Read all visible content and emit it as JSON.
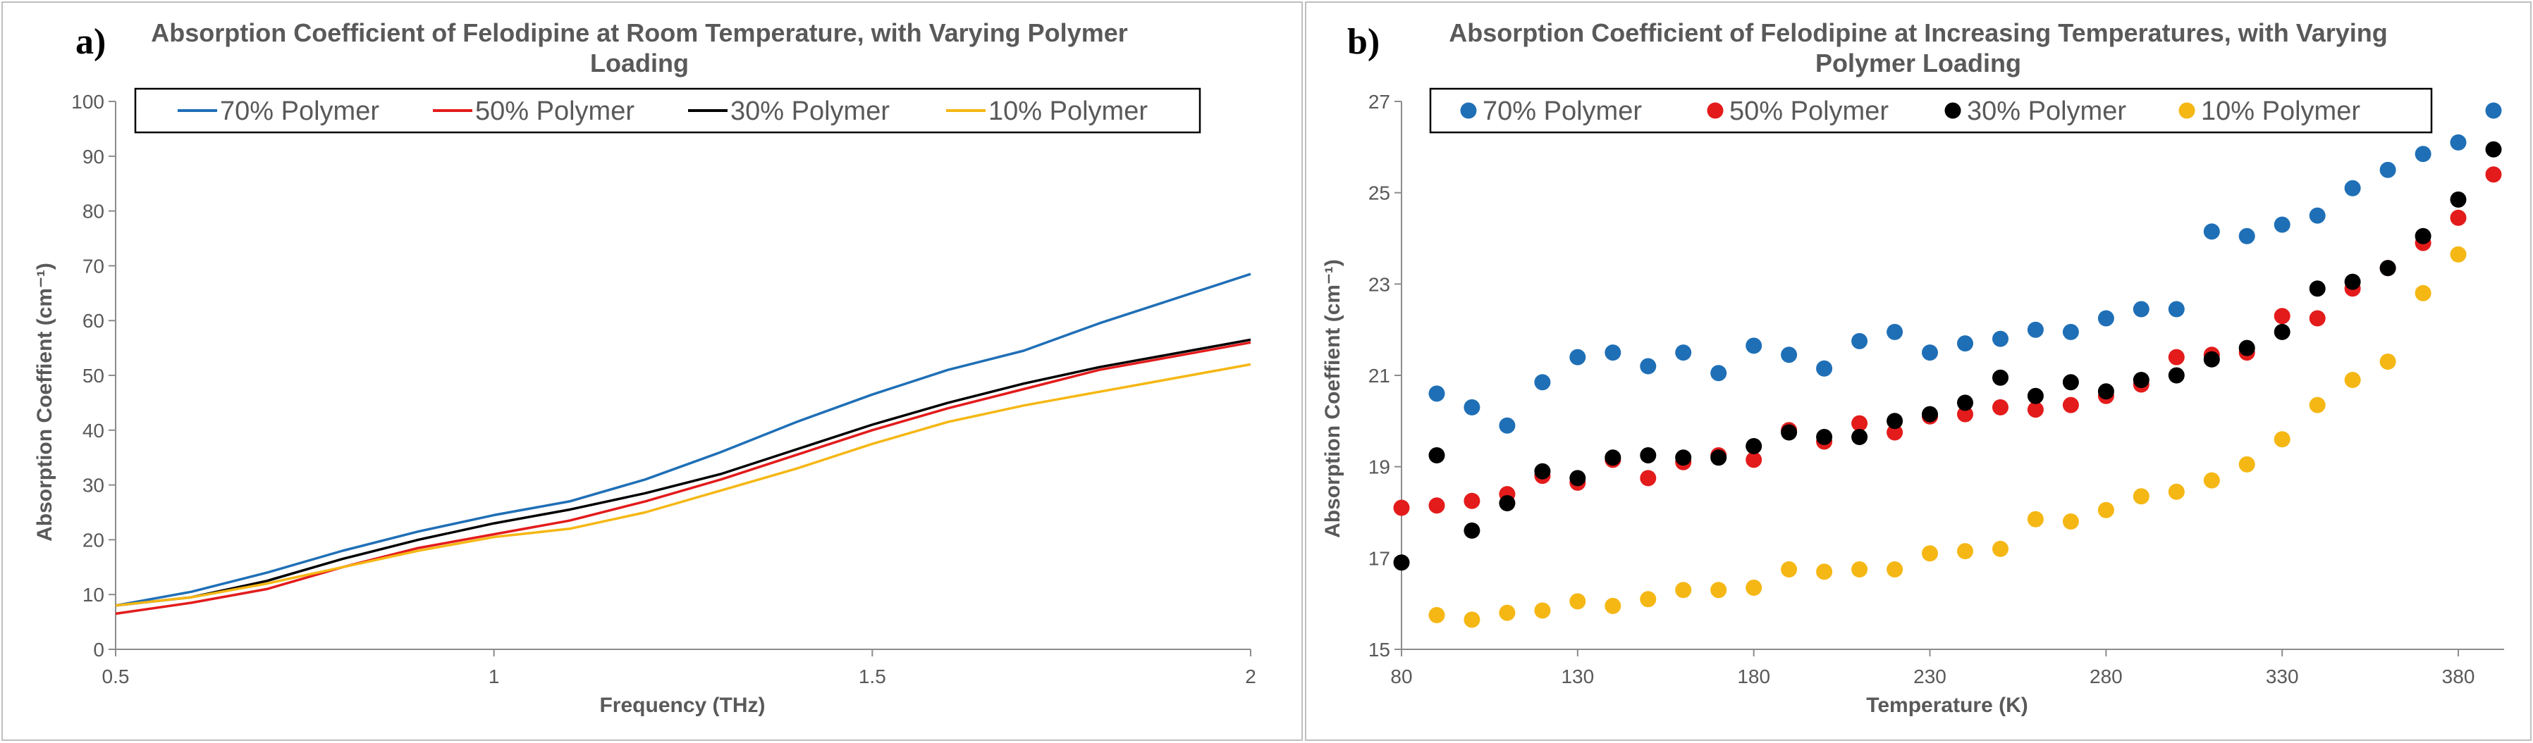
{
  "charts": [
    {
      "panel_letter": "a)",
      "title_lines": [
        "Absorption Coefficient of Felodipine at Room Temperature, with Varying Polymer",
        "Loading"
      ],
      "xlabel": "Frequency (THz)",
      "ylabel": "Absorption Coeffient (cm⁻¹)",
      "xticks": [
        "0.5",
        "1",
        "1.5",
        "2"
      ],
      "yticks": [
        "0",
        "10",
        "20",
        "30",
        "40",
        "50",
        "60",
        "70",
        "80",
        "90",
        "100"
      ]
    },
    {
      "panel_letter": "b)",
      "title_lines": [
        "Absorption Coefficient of Felodipine at Increasing Temperatures, with Varying",
        "Polymer Loading"
      ],
      "xlabel": "Temperature (K)",
      "ylabel": "Absorption Coeffient (cm⁻¹)",
      "xticks": [
        "80",
        "130",
        "180",
        "230",
        "280",
        "330",
        "380"
      ],
      "yticks": [
        "15",
        "17",
        "19",
        "21",
        "23",
        "25",
        "27"
      ]
    }
  ],
  "chart_data": [
    {
      "type": "line",
      "title": "Absorption Coefficient of Felodipine at Room Temperature, with Varying Polymer Loading",
      "xlabel": "Frequency (THz)",
      "ylabel": "Absorption Coeffient (cm⁻¹)",
      "xlim": [
        0.5,
        2
      ],
      "ylim": [
        0,
        100
      ],
      "x_ticks": [
        0.5,
        1,
        1.5,
        2
      ],
      "y_ticks": [
        0,
        10,
        20,
        30,
        40,
        50,
        60,
        70,
        80,
        90,
        100
      ],
      "grid": false,
      "legend_position": "top",
      "x": [
        0.5,
        0.6,
        0.7,
        0.8,
        0.9,
        1.0,
        1.1,
        1.2,
        1.3,
        1.4,
        1.5,
        1.6,
        1.7,
        1.8,
        1.9,
        2.0
      ],
      "series": [
        {
          "name": "70% Polymer",
          "color": "#1f6fb6",
          "values": [
            8,
            10.5,
            14,
            18,
            21.5,
            24.5,
            27,
            31,
            36,
            41.5,
            46.5,
            51,
            54.5,
            59.5,
            64,
            68.5
          ]
        },
        {
          "name": "50% Polymer",
          "color": "#e31b1b",
          "values": [
            6.5,
            8.5,
            11,
            15,
            18.5,
            21,
            23.5,
            27,
            31,
            35.5,
            40,
            44,
            47.5,
            51,
            53.5,
            56
          ]
        },
        {
          "name": "30% Polymer",
          "color": "#000000",
          "values": [
            8,
            9.5,
            12.5,
            16.5,
            20,
            23,
            25.5,
            28.5,
            32,
            36.5,
            41,
            45,
            48.5,
            51.5,
            54,
            56.5
          ]
        },
        {
          "name": "10% Polymer",
          "color": "#f5b714",
          "values": [
            8,
            9.5,
            12,
            15,
            18,
            20.5,
            22,
            25,
            29,
            33,
            37.5,
            41.5,
            44.5,
            47,
            49.5,
            52
          ]
        }
      ]
    },
    {
      "type": "scatter",
      "title": "Absorption Coefficient of Felodipine at Increasing Temperatures, with Varying Polymer Loading",
      "xlabel": "Temperature (K)",
      "ylabel": "Absorption Coeffient (cm⁻¹)",
      "xlim": [
        80,
        393
      ],
      "ylim": [
        15,
        27
      ],
      "x_ticks": [
        80,
        130,
        180,
        230,
        280,
        330,
        380
      ],
      "y_ticks": [
        15,
        17,
        19,
        21,
        23,
        25,
        27
      ],
      "grid": false,
      "legend_position": "top",
      "x": [
        80,
        90,
        100,
        110,
        120,
        130,
        140,
        150,
        160,
        170,
        180,
        190,
        200,
        210,
        220,
        230,
        240,
        250,
        260,
        270,
        280,
        290,
        300,
        310,
        320,
        330,
        340,
        350,
        360,
        370,
        380,
        390
      ],
      "series": [
        {
          "name": "70% Polymer",
          "color": "#1f6fb6",
          "values": [
            null,
            20.6,
            20.3,
            19.9,
            20.85,
            21.4,
            21.5,
            21.2,
            21.5,
            21.05,
            21.65,
            21.45,
            21.15,
            21.75,
            21.95,
            21.5,
            21.7,
            21.8,
            22.0,
            21.95,
            22.25,
            22.45,
            22.45,
            24.15,
            24.05,
            24.3,
            24.5,
            25.1,
            25.5,
            25.85,
            26.1,
            26.8
          ]
        },
        {
          "name": "50% Polymer",
          "color": "#e31b1b",
          "values": [
            18.1,
            18.15,
            18.25,
            18.4,
            18.8,
            18.65,
            19.15,
            18.75,
            19.1,
            19.25,
            19.15,
            19.8,
            19.55,
            19.95,
            19.75,
            20.1,
            20.15,
            20.3,
            20.25,
            20.35,
            20.55,
            20.8,
            21.4,
            21.45,
            21.5,
            22.3,
            22.25,
            22.9,
            23.35,
            23.9,
            24.45,
            25.4
          ]
        },
        {
          "name": "30% Polymer",
          "color": "#000000",
          "values": [
            16.9,
            19.25,
            17.6,
            18.2,
            18.9,
            18.75,
            19.2,
            19.25,
            19.2,
            19.2,
            19.45,
            19.75,
            19.65,
            19.65,
            20.0,
            20.15,
            20.4,
            20.95,
            20.55,
            20.85,
            20.65,
            20.9,
            21.0,
            21.35,
            21.6,
            21.95,
            22.9,
            23.05,
            23.35,
            24.05,
            24.85,
            25.95
          ]
        },
        {
          "name": "10% Polymer",
          "color": "#f5b714",
          "values": [
            null,
            15.75,
            15.65,
            15.8,
            15.85,
            16.05,
            15.95,
            16.1,
            16.3,
            16.3,
            16.35,
            16.75,
            16.7,
            16.75,
            16.75,
            17.1,
            17.15,
            17.2,
            17.85,
            17.8,
            18.05,
            18.35,
            18.45,
            18.7,
            19.05,
            19.6,
            20.35,
            20.9,
            21.3,
            22.8,
            23.65,
            null
          ]
        }
      ]
    }
  ]
}
